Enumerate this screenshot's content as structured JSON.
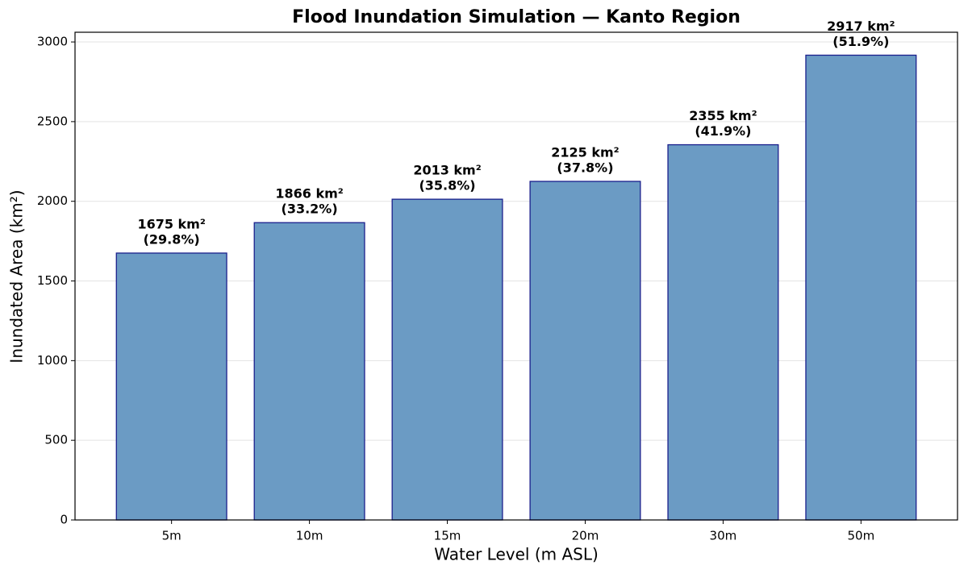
{
  "chart_data": {
    "type": "bar",
    "title": "Flood Inundation Simulation — Kanto Region",
    "x_label": "Water Level (m ASL)",
    "y_label": "Inundated Area (km²)",
    "categories": [
      "5m",
      "10m",
      "15m",
      "20m",
      "30m",
      "50m"
    ],
    "values": [
      1675,
      1866,
      2013,
      2125,
      2355,
      2917
    ],
    "value_labels": [
      [
        "1675 km²",
        "(29.8%)"
      ],
      [
        "1866 km²",
        "(33.2%)"
      ],
      [
        "2013 km²",
        "(35.8%)"
      ],
      [
        "2125 km²",
        "(37.8%)"
      ],
      [
        "2355 km²",
        "(41.9%)"
      ],
      [
        "2917 km²",
        "(51.9%)"
      ]
    ],
    "color": "#6b9bc4",
    "edge_color": "#1a1f8c",
    "ylim": [
      0,
      3061
    ],
    "yticks": [
      0,
      500,
      1000,
      1500,
      2000,
      2500,
      3000
    ],
    "grid": true
  }
}
